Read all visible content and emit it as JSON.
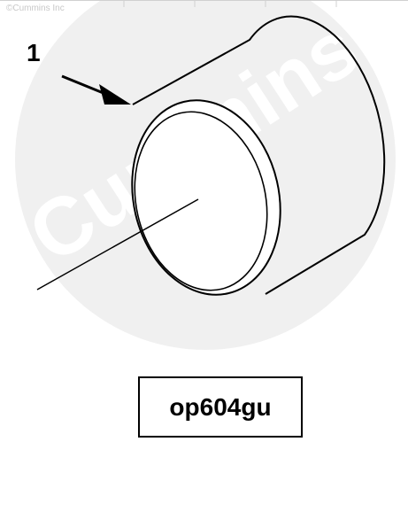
{
  "copyright": "©Cummins Inc",
  "watermark": {
    "text": "Cummins",
    "color": "#f0f0f0"
  },
  "callout": {
    "number": "1"
  },
  "figure_id": "op604gu",
  "colors": {
    "line": "#000000",
    "background": "#ffffff",
    "watermark": "#f0f0f0"
  }
}
